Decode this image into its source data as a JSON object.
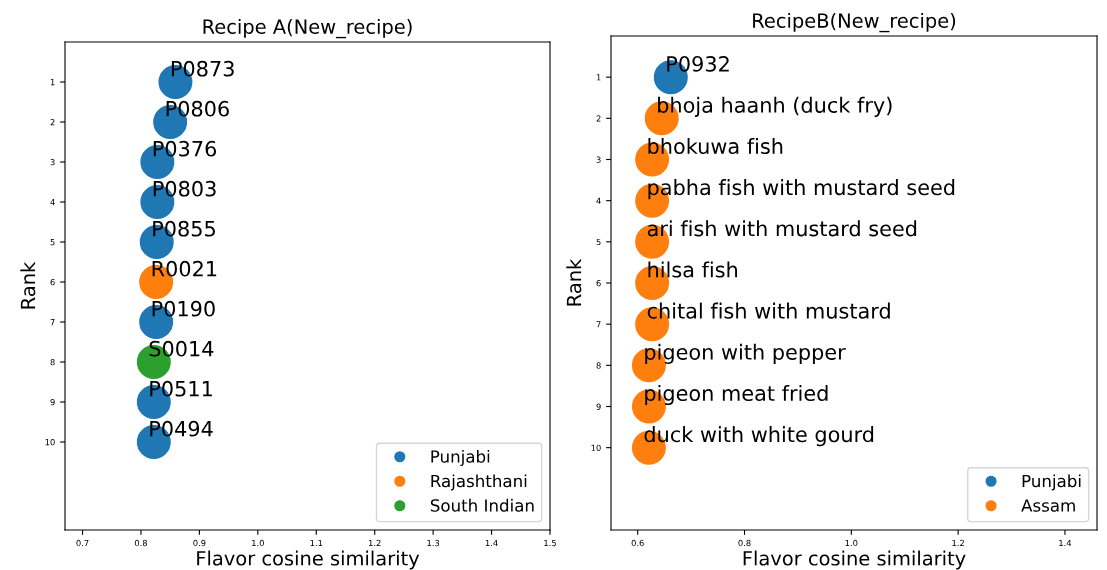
{
  "chart_data": [
    {
      "type": "scatter",
      "title": "Recipe A(New_recipe)",
      "xlabel": "Flavor cosine similarity",
      "ylabel": "Rank",
      "xlim": [
        0.67,
        1.5
      ],
      "xticks": [
        0.7,
        0.8,
        0.9,
        {
          "value": 1,
          "label": "1.0"
        },
        1.1,
        1.2,
        1.3,
        1.4,
        1.5
      ],
      "ylim": [
        12.2,
        0
      ],
      "yticks": [
        1,
        2,
        3,
        4,
        5,
        6,
        7,
        8,
        9,
        10
      ],
      "legend": "bottom right",
      "marker": "circle",
      "grid": false,
      "series": [
        {
          "name": "Punjabi",
          "color": "#1f77b4",
          "x": [
            0.859,
            0.85,
            0.828,
            0.828,
            0.827,
            0.826,
            0.822,
            0.822
          ],
          "values": [
            1,
            2,
            3,
            4,
            5,
            7,
            9,
            10
          ]
        },
        {
          "name": "Rajashthani",
          "color": "#ff7f0e",
          "x": [
            0.826
          ],
          "values": [
            6
          ]
        },
        {
          "name": "South Indian",
          "color": "#2ca02c",
          "x": [
            0.822
          ],
          "values": [
            8
          ]
        }
      ],
      "annotations": [
        {
          "text": "P0873",
          "x": 0.859,
          "y": 1
        },
        {
          "text": "P0806",
          "x": 0.85,
          "y": 2
        },
        {
          "text": "P0376",
          "x": 0.828,
          "y": 3
        },
        {
          "text": "P0803",
          "x": 0.828,
          "y": 4
        },
        {
          "text": "P0855",
          "x": 0.827,
          "y": 5
        },
        {
          "text": "R0021",
          "x": 0.826,
          "y": 6
        },
        {
          "text": "P0190",
          "x": 0.826,
          "y": 7
        },
        {
          "text": "S0014",
          "x": 0.822,
          "y": 8
        },
        {
          "text": "P0511",
          "x": 0.822,
          "y": 9
        },
        {
          "text": "P0494",
          "x": 0.822,
          "y": 10
        }
      ]
    },
    {
      "type": "scatter",
      "title": "RecipeB(New_recipe)",
      "xlabel": "Flavor cosine similarity",
      "ylabel": "Rank",
      "xlim": [
        0.55,
        1.46
      ],
      "xticks": [
        0.6,
        0.8,
        {
          "value": 1,
          "label": "1.0"
        },
        1.2,
        1.4
      ],
      "ylim": [
        12,
        0
      ],
      "yticks": [
        1,
        2,
        3,
        4,
        5,
        6,
        7,
        8,
        9,
        10
      ],
      "legend": "bottom right",
      "marker": "circle",
      "grid": false,
      "series": [
        {
          "name": "Punjabi",
          "color": "#1f77b4",
          "x": [
            0.662
          ],
          "values": [
            1
          ]
        },
        {
          "name": "Assam",
          "color": "#ff7f0e",
          "x": [
            0.645,
            0.627,
            0.627,
            0.627,
            0.627,
            0.627,
            0.621,
            0.621,
            0.621
          ],
          "values": [
            2,
            3,
            4,
            5,
            6,
            7,
            8,
            9,
            10
          ]
        }
      ],
      "annotations": [
        {
          "text": "P0932",
          "x": 0.662,
          "y": 1
        },
        {
          "text": "bhoja haanh (duck fry)",
          "x": 0.645,
          "y": 2
        },
        {
          "text": "bhokuwa fish",
          "x": 0.627,
          "y": 3
        },
        {
          "text": "pabha fish with mustard seed",
          "x": 0.627,
          "y": 4
        },
        {
          "text": "ari fish with mustard seed",
          "x": 0.627,
          "y": 5
        },
        {
          "text": "hilsa fish",
          "x": 0.627,
          "y": 6
        },
        {
          "text": "chital fish with mustard",
          "x": 0.627,
          "y": 7
        },
        {
          "text": "pigeon with pepper",
          "x": 0.621,
          "y": 8
        },
        {
          "text": "pigeon meat fried",
          "x": 0.621,
          "y": 9
        },
        {
          "text": "duck with white gourd",
          "x": 0.621,
          "y": 10
        }
      ]
    }
  ]
}
